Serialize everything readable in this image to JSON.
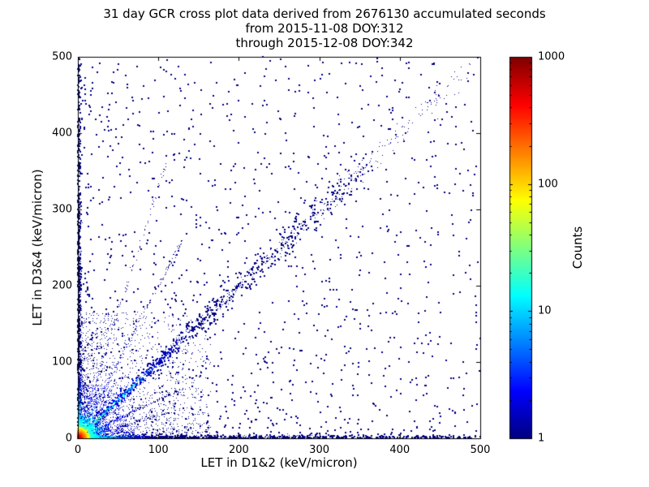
{
  "chart_data": {
    "type": "scatter",
    "title_lines": [
      "31 day GCR cross plot data derived from 2676130 accumulated seconds",
      "from 2015-11-08 DOY:312",
      "through 2015-12-08 DOY:342"
    ],
    "xlabel": "LET in D1&2 (keV/micron)",
    "ylabel": "LET in D3&4 (keV/micron)",
    "xlim": [
      0,
      500
    ],
    "ylim": [
      0,
      500
    ],
    "xticks": [
      0,
      100,
      200,
      300,
      400,
      500
    ],
    "yticks": [
      0,
      100,
      200,
      300,
      400,
      500
    ],
    "grid": false,
    "background": "#ffffff",
    "frame_color": "#000000",
    "point_color_low": "#00007f",
    "colorbar": {
      "label": "Counts",
      "scale": "log",
      "min": 1,
      "max": 1000,
      "ticks": [
        1,
        10,
        100,
        1000
      ],
      "colormap": "jet"
    },
    "clusters": [
      {
        "type": "uniform",
        "n": 1300,
        "xmax": 500,
        "ymax": 500,
        "powx": 1.35,
        "powy": 1.35,
        "count": 1,
        "size": 2
      },
      {
        "type": "uniform",
        "n": 2000,
        "xmax": 165,
        "ymax": 165,
        "powx": 2.0,
        "powy": 2.0,
        "count": 1,
        "size": 1
      },
      {
        "type": "uniform",
        "n": 1200,
        "xmax": 70,
        "ymax": 70,
        "powx": 1.8,
        "powy": 1.8,
        "count": 2,
        "size": 1
      },
      {
        "type": "bandx",
        "n": 450,
        "max": 500,
        "pow": 1.3,
        "thick": 4,
        "count0": 1,
        "fall": 100000,
        "size": 2
      },
      {
        "type": "bandy",
        "n": 500,
        "max": 500,
        "pow": 1.3,
        "thick": 4,
        "count0": 1,
        "fall": 100000,
        "size": 2
      },
      {
        "type": "bandx",
        "n": 900,
        "max": 300,
        "pow": 2.6,
        "thick": 4,
        "count0": 30,
        "fall": 30,
        "size": 1
      },
      {
        "type": "bandy",
        "n": 900,
        "max": 300,
        "pow": 2.6,
        "thick": 4,
        "count0": 30,
        "fall": 30,
        "size": 1
      },
      {
        "type": "ray",
        "n": 220,
        "slope": 0.5,
        "max": 130,
        "spread": 2,
        "count0": 6,
        "fall": 45,
        "size": 1
      },
      {
        "type": "ray",
        "n": 220,
        "slope": 2.0,
        "max": 130,
        "spread": 2,
        "count0": 6,
        "fall": 45,
        "size": 1
      },
      {
        "type": "ray",
        "n": 150,
        "slope": 0.3,
        "max": 110,
        "spread": 2,
        "count0": 4,
        "fall": 40,
        "size": 1
      },
      {
        "type": "ray",
        "n": 150,
        "slope": 3.3,
        "max": 110,
        "spread": 2,
        "count0": 4,
        "fall": 40,
        "size": 1
      },
      {
        "type": "diag",
        "n": 650,
        "max": 360,
        "pow": 1.5,
        "spread0": 2.5,
        "spreadGrow": 0.055,
        "count0": 3,
        "fall": 130,
        "size": 2
      },
      {
        "type": "diag",
        "n": 1000,
        "max": 500,
        "pow": 3.0,
        "spread0": 1.0,
        "spreadGrow": 0.03,
        "count0": 45,
        "fall": 40,
        "size": 1
      },
      {
        "type": "blob",
        "n": 1600,
        "scale": 26,
        "count0": 50,
        "fall": 16,
        "size": 1
      },
      {
        "type": "blob",
        "n": 2600,
        "scale": 9,
        "count0": 1000,
        "fall": 5,
        "size": 2
      }
    ]
  }
}
